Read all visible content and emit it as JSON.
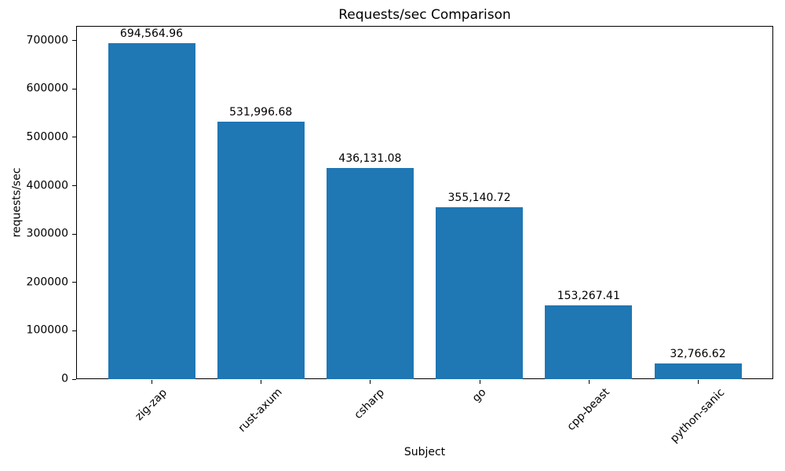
{
  "chart_data": {
    "type": "bar",
    "title": "Requests/sec Comparison",
    "xlabel": "Subject",
    "ylabel": "requests/sec",
    "categories": [
      "zig-zap",
      "rust-axum",
      "csharp",
      "go",
      "cpp-beast",
      "python-sanic"
    ],
    "values": [
      694564.96,
      531996.68,
      436131.08,
      355140.72,
      153267.41,
      32766.62
    ],
    "value_labels": [
      "694,564.96",
      "531,996.68",
      "436,131.08",
      "355,140.72",
      "153,267.41",
      "32,766.62"
    ],
    "ylim": [
      0,
      730500
    ],
    "yticks": [
      0,
      100000,
      200000,
      300000,
      400000,
      500000,
      600000,
      700000
    ],
    "ytick_labels": [
      "0",
      "100000",
      "200000",
      "300000",
      "400000",
      "500000",
      "600000",
      "700000"
    ],
    "bar_color": "#1f77b4",
    "text_color": "#000000",
    "grid": false,
    "legend_position": "none"
  }
}
